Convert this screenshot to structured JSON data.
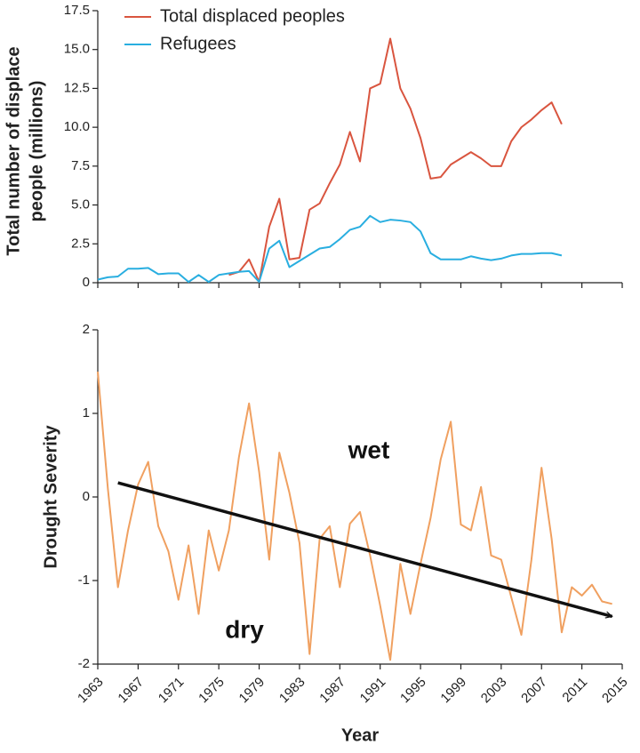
{
  "chart_data": [
    {
      "type": "line",
      "ylabel": [
        "Total number of displace",
        "people (millions)"
      ],
      "x": [
        1963,
        1964,
        1965,
        1966,
        1967,
        1968,
        1969,
        1970,
        1971,
        1972,
        1973,
        1974,
        1975,
        1976,
        1977,
        1978,
        1979,
        1980,
        1981,
        1982,
        1983,
        1984,
        1985,
        1986,
        1987,
        1988,
        1989,
        1990,
        1991,
        1992,
        1993,
        1994,
        1995,
        1996,
        1997,
        1998,
        1999,
        2000,
        2001,
        2002,
        2003,
        2004,
        2005,
        2006,
        2007,
        2008,
        2009
      ],
      "series": [
        {
          "name": "Total displaced peoples",
          "color": "#d9553f",
          "values": [
            null,
            null,
            null,
            null,
            null,
            null,
            null,
            null,
            null,
            null,
            null,
            null,
            null,
            0.5,
            0.7,
            1.5,
            0.05,
            3.6,
            5.4,
            1.5,
            1.6,
            4.7,
            5.1,
            6.4,
            7.6,
            9.7,
            7.8,
            12.5,
            12.8,
            15.7,
            12.5,
            11.2,
            9.3,
            6.7,
            6.8,
            7.6,
            8.0,
            8.4,
            8.0,
            7.5,
            7.5,
            9.1,
            10.0,
            10.5,
            11.1,
            11.6,
            10.2
          ]
        },
        {
          "name": "Refugees",
          "color": "#29aee0",
          "values": [
            0.2,
            0.35,
            0.4,
            0.9,
            0.9,
            0.95,
            0.55,
            0.6,
            0.6,
            0.05,
            0.5,
            0.05,
            0.5,
            0.6,
            0.7,
            0.75,
            0.05,
            2.2,
            2.7,
            1.0,
            1.4,
            1.8,
            2.2,
            2.3,
            2.8,
            3.4,
            3.6,
            4.3,
            3.9,
            4.05,
            4.0,
            3.9,
            3.3,
            1.9,
            1.5,
            1.5,
            1.5,
            1.7,
            1.55,
            1.45,
            1.55,
            1.75,
            1.85,
            1.85,
            1.9,
            1.9,
            1.75
          ]
        }
      ],
      "xlim": [
        1963,
        2015
      ],
      "ylim": [
        0,
        17.5
      ],
      "yticks": [
        0,
        2.5,
        {
          "value": 5,
          "label": "5.0"
        },
        7.5,
        {
          "value": 10,
          "label": "10.0"
        },
        12.5,
        {
          "value": 15,
          "label": "15.0"
        },
        17.5
      ],
      "legend": "upper left"
    },
    {
      "type": "line",
      "ylabel": "Drought Severity",
      "xlabel": "Year",
      "x": [
        1963,
        1964,
        1965,
        1966,
        1967,
        1968,
        1969,
        1970,
        1971,
        1972,
        1973,
        1974,
        1975,
        1976,
        1977,
        1978,
        1979,
        1980,
        1981,
        1982,
        1983,
        1984,
        1985,
        1986,
        1987,
        1988,
        1989,
        1990,
        1991,
        1992,
        1993,
        1994,
        1995,
        1996,
        1997,
        1998,
        1999,
        2000,
        2001,
        2002,
        2003,
        2004,
        2005,
        2006,
        2007,
        2008,
        2009,
        2010,
        2011,
        2012,
        2013,
        2014
      ],
      "series": [
        {
          "color": "#f0a060",
          "values": [
            1.5,
            0.1,
            -1.08,
            -0.4,
            0.15,
            0.42,
            -0.35,
            -0.65,
            -1.23,
            -0.58,
            -1.4,
            -0.4,
            -0.88,
            -0.4,
            0.48,
            1.12,
            0.3,
            -0.75,
            0.53,
            0.05,
            -0.55,
            -1.88,
            -0.5,
            -0.35,
            -1.08,
            -0.32,
            -0.18,
            -0.7,
            -1.3,
            -1.95,
            -0.8,
            -1.4,
            -0.8,
            -0.25,
            0.45,
            0.9,
            -0.33,
            -0.4,
            0.12,
            -0.7,
            -0.75,
            -1.2,
            -1.65,
            -0.75,
            0.35,
            -0.5,
            -1.62,
            -1.08,
            -1.18,
            -1.05,
            -1.25,
            -1.28
          ]
        }
      ],
      "xlim": [
        1963,
        2015
      ],
      "xticks": [
        1963,
        1967,
        1971,
        1975,
        1979,
        1983,
        1987,
        1991,
        1995,
        1999,
        2003,
        2007,
        2011,
        2015
      ],
      "ylim": [
        -2,
        2
      ],
      "yticks": [
        -2,
        -1,
        0,
        1,
        2
      ],
      "trend": {
        "x": [
          1965,
          2014
        ],
        "y": [
          0.17,
          -1.43
        ]
      },
      "annotations": [
        "wet",
        "dry"
      ]
    }
  ]
}
